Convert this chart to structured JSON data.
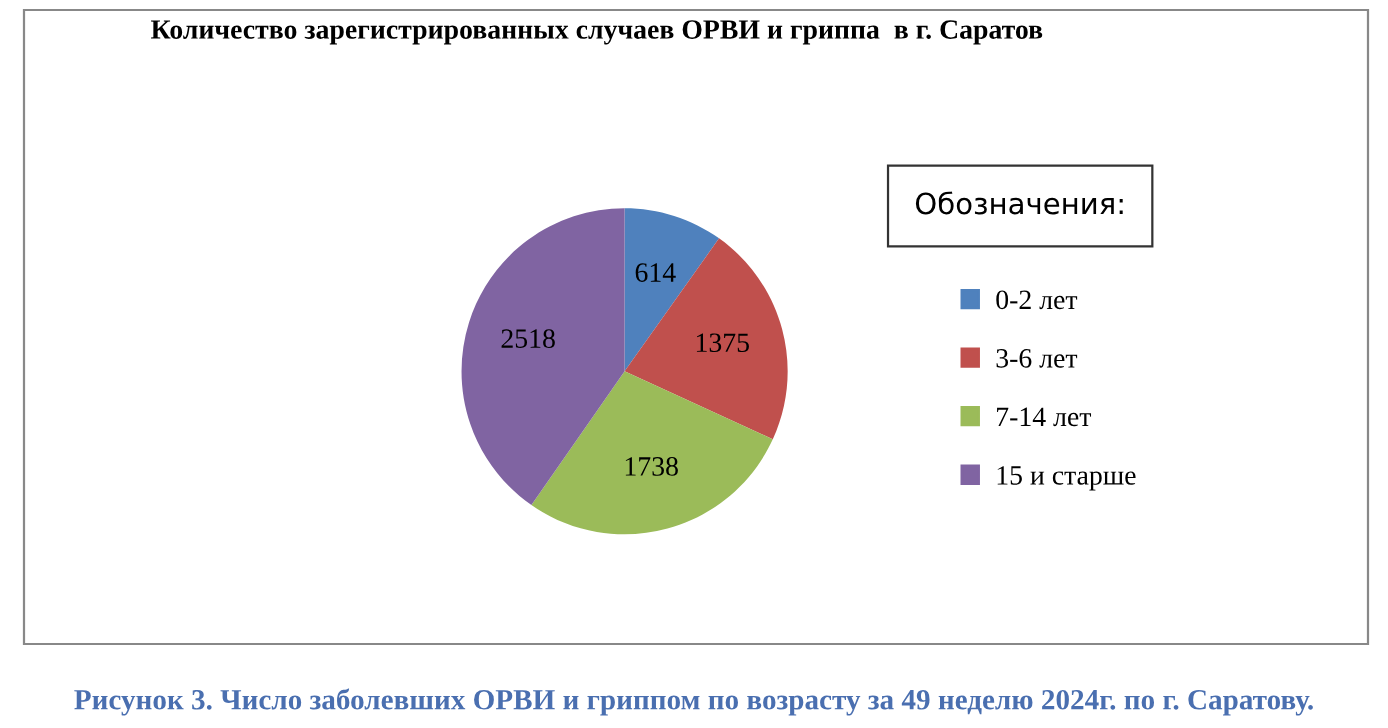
{
  "chart_data": {
    "type": "pie",
    "title": "Количество зарегистрированных случаев ОРВИ и гриппа  в г. Саратов",
    "categories": [
      "0-2 лет",
      "3-6 лет",
      "7-14 лет",
      "15 и старше"
    ],
    "values": [
      614,
      1375,
      1738,
      2518
    ],
    "colors": [
      "#4f81bd",
      "#c0504d",
      "#9bbb59",
      "#8064a2"
    ],
    "data_labels": true,
    "legend": "right",
    "legend_title": "Обозначения:",
    "annotations": [
      "Рисунок 3. Число заболевших ОРВИ и гриппом по возрасту за 49 неделю 2024г. по г. Саратову."
    ]
  }
}
